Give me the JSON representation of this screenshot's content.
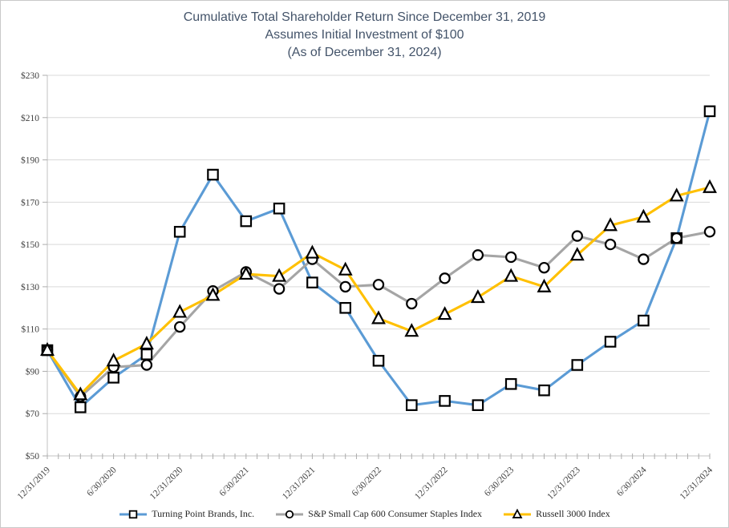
{
  "title": {
    "line1": "Cumulative Total Shareholder Return Since December 31, 2019",
    "line2": "Assumes Initial Investment of $100",
    "line3": "(As of December 31, 2024)"
  },
  "chart_data": {
    "type": "line",
    "title": "Cumulative Total Shareholder Return Since December 31, 2019",
    "subtitle": "Assumes Initial Investment of $100 (As of December 31, 2024)",
    "ylim": [
      50,
      230
    ],
    "ytick_step": 20,
    "y_ticks": [
      {
        "value": 230,
        "label": "$230"
      },
      {
        "value": 210,
        "label": "$210"
      },
      {
        "value": 190,
        "label": "$190"
      },
      {
        "value": 170,
        "label": "$170"
      },
      {
        "value": 150,
        "label": "$150"
      },
      {
        "value": 130,
        "label": "$130"
      },
      {
        "value": 110,
        "label": "$110"
      },
      {
        "value": 90,
        "label": "$90"
      },
      {
        "value": 70,
        "label": "$70"
      },
      {
        "value": 50,
        "label": "$50"
      }
    ],
    "x_categories": [
      "12/31/2019",
      "3/31/2020",
      "6/30/2020",
      "9/30/2020",
      "12/31/2020",
      "3/31/2021",
      "6/30/2021",
      "9/30/2021",
      "12/31/2021",
      "3/31/2022",
      "6/30/2022",
      "9/30/2022",
      "12/31/2022",
      "3/31/2023",
      "6/30/2023",
      "9/30/2023",
      "12/31/2023",
      "3/31/2024",
      "6/30/2024",
      "9/30/2024",
      "12/31/2024"
    ],
    "x_axis_labels": [
      "12/31/2019",
      "6/30/2020",
      "12/31/2020",
      "6/30/2021",
      "12/31/2021",
      "6/30/2022",
      "12/31/2022",
      "6/30/2023",
      "12/31/2023",
      "6/30/2024",
      "12/31/2024"
    ],
    "x_label_every_n_points": 2,
    "grid": true,
    "legend_position": "bottom",
    "series": [
      {
        "name": "Turning Point Brands, Inc.",
        "color": "#5B9BD5",
        "marker": "square",
        "values": [
          100,
          73,
          87,
          98,
          156,
          183,
          161,
          167,
          132,
          120,
          95,
          74,
          76,
          74,
          84,
          81,
          93,
          104,
          114,
          153,
          213
        ]
      },
      {
        "name": "S&P Small Cap 600 Consumer Staples Index",
        "color": "#A5A5A5",
        "marker": "circle",
        "values": [
          100,
          78,
          92,
          93,
          111,
          128,
          137,
          129,
          143,
          130,
          131,
          122,
          134,
          145,
          144,
          139,
          154,
          150,
          143,
          153,
          156
        ]
      },
      {
        "name": "Russell 3000 Index",
        "color": "#FFC000",
        "marker": "triangle",
        "values": [
          100,
          79,
          95,
          103,
          118,
          126,
          136,
          135,
          146,
          138,
          115,
          109,
          117,
          125,
          135,
          130,
          145,
          159,
          163,
          173,
          177
        ]
      }
    ],
    "colors": {
      "grid": "#D9D9D9",
      "axis": "#C0C0C0",
      "tick": "#ADADAD",
      "axis_text": "#404040",
      "title_text": "#44546A",
      "legend_text": "#262626",
      "marker_stroke": "#000000",
      "marker_fill": "#FFFFFF",
      "background": "#FFFFFF",
      "border": "#C9C9C9"
    }
  }
}
